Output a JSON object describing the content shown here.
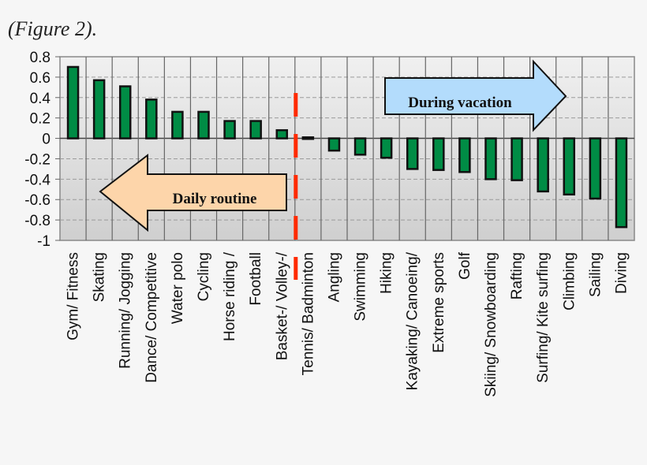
{
  "caption": "(Figure 2).",
  "chart_data": {
    "type": "bar",
    "title": "",
    "xlabel": "",
    "ylabel": "",
    "ylim": [
      -1,
      0.8
    ],
    "yticks": [
      "0.8",
      "0.6",
      "0.4",
      "0.2",
      "0",
      "-0.2",
      "-0.4",
      "-0.6",
      "-0.8",
      "-1"
    ],
    "grid": true,
    "categories": [
      "Gym/ Fitness",
      "Skating",
      "Running/ Jogging",
      "Dance/ Competitive",
      "Water polo",
      "Cycling",
      "Horse riding /",
      "Football",
      "Basket-/ Volley-/",
      "Tennis/ Badminton",
      "Angling",
      "Swimming",
      "Hiking",
      "Kayaking/ Canoeing/",
      "Extreme sports",
      "Golf",
      "Skiing/ Snowboarding",
      "Rafting",
      "Surfing/ Kite surfing",
      "Climbing",
      "Sailing",
      "Diving"
    ],
    "values": [
      0.7,
      0.57,
      0.51,
      0.38,
      0.26,
      0.26,
      0.17,
      0.17,
      0.08,
      0.01,
      -0.12,
      -0.16,
      -0.19,
      -0.3,
      -0.31,
      -0.33,
      -0.4,
      -0.41,
      -0.52,
      -0.55,
      -0.59,
      -0.87
    ],
    "bar_color": "#008c45",
    "divider_after_category": "Basket-/ Volley-/",
    "divider_color": "#ff2a00",
    "annotations": [
      {
        "text": "Daily routine",
        "direction": "left",
        "color": "#fdd5aa"
      },
      {
        "text": "During vacation",
        "direction": "right",
        "color": "#b3dcfc"
      }
    ]
  }
}
